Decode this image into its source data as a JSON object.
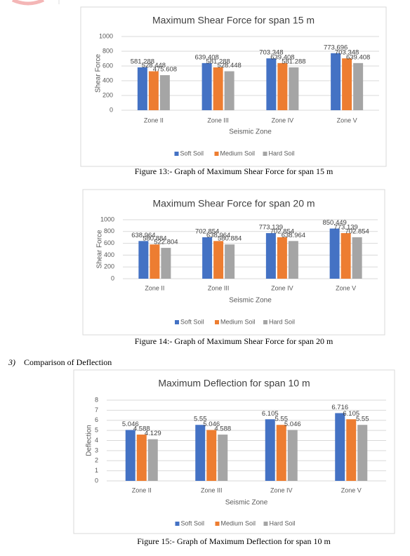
{
  "chart_data": [
    {
      "type": "bar",
      "title": "Maximum Shear Force for span 15 m",
      "x_label": "Seismic Zone",
      "y_label": "Shear Force",
      "categories": [
        "Zone II",
        "Zone III",
        "Zone IV",
        "Zone V"
      ],
      "series": [
        {
          "name": "Soft Soil",
          "color": "#4472c4",
          "values": [
            581.288,
            639.408,
            703.348,
            773.696
          ]
        },
        {
          "name": "Medium Soil",
          "color": "#ed7d31",
          "values": [
            528.448,
            581.288,
            639.408,
            703.348
          ]
        },
        {
          "name": "Hard Soil",
          "color": "#a5a5a5",
          "values": [
            475.608,
            528.448,
            581.288,
            639.408
          ]
        }
      ],
      "ylim": [
        0,
        1000
      ],
      "yticks": [
        0,
        200,
        400,
        600,
        800,
        1000
      ],
      "grid": true,
      "legend": "bottom"
    },
    {
      "type": "bar",
      "title": "Maximum Shear Force for span 20 m",
      "x_label": "Seismic Zone",
      "y_label": "Shear Force",
      "categories": [
        "Zone II",
        "Zone III",
        "Zone IV",
        "Zone V"
      ],
      "series": [
        {
          "name": "Soft Soil",
          "color": "#4472c4",
          "values": [
            638.964,
            702.854,
            773.139,
            850.449
          ]
        },
        {
          "name": "Medium Soil",
          "color": "#ed7d31",
          "values": [
            580.884,
            638.964,
            702.854,
            773.139
          ]
        },
        {
          "name": "Hard Soil",
          "color": "#a5a5a5",
          "values": [
            522.804,
            580.884,
            638.964,
            702.854
          ]
        }
      ],
      "ylim": [
        0,
        1000
      ],
      "yticks": [
        0,
        200,
        400,
        600,
        800,
        1000
      ],
      "grid": true,
      "legend": "bottom"
    },
    {
      "type": "bar",
      "title": "Maximum Deflection for span 10 m",
      "x_label": "Seismic Zone",
      "y_label": "Deflection",
      "categories": [
        "Zone II",
        "Zone III",
        "Zone IV",
        "Zone V"
      ],
      "series": [
        {
          "name": "Soft Soil",
          "color": "#4472c4",
          "values": [
            5.046,
            5.55,
            6.105,
            6.716
          ]
        },
        {
          "name": "Medium Soil",
          "color": "#ed7d31",
          "values": [
            4.588,
            5.046,
            5.55,
            6.105
          ]
        },
        {
          "name": "Hard Soil",
          "color": "#a5a5a5",
          "values": [
            4.129,
            4.588,
            5.046,
            5.55
          ]
        }
      ],
      "ylim": [
        0,
        8
      ],
      "yticks": [
        0,
        1,
        2,
        3,
        4,
        5,
        6,
        7,
        8
      ],
      "grid": true,
      "legend": "bottom"
    }
  ],
  "captions": [
    "Figure 13:- Graph of Maximum Shear Force for span 15 m",
    "Figure 14:- Graph of Maximum Shear Force for span 20 m",
    "Figure 15:- Graph of Maximum Deflection for span 10 m"
  ],
  "section_heading": {
    "number": "3)",
    "text": "Comparison of Deflection"
  }
}
